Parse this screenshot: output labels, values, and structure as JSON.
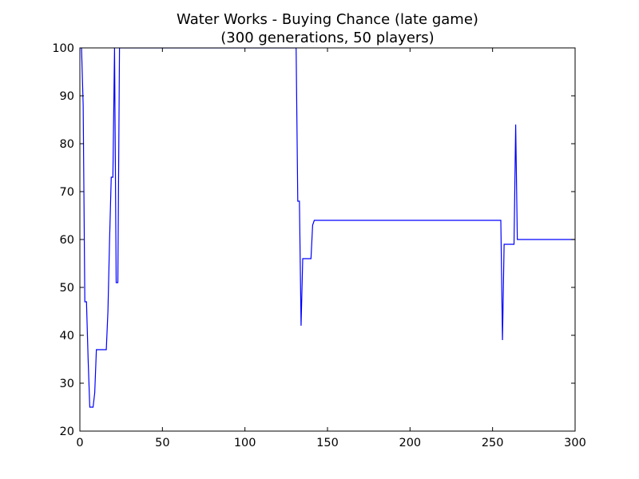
{
  "chart_data": {
    "type": "line",
    "title": "Water Works - Buying Chance (late game)",
    "subtitle": "(300 generations, 50 players)",
    "xlabel": "",
    "ylabel": "",
    "xlim": [
      0,
      300
    ],
    "ylim": [
      20,
      100
    ],
    "xticks": [
      0,
      50,
      100,
      150,
      200,
      250,
      300
    ],
    "yticks": [
      20,
      30,
      40,
      50,
      60,
      70,
      80,
      90,
      100
    ],
    "grid": false,
    "line_color": "#0000ff",
    "series": [
      {
        "x": [
          0,
          1,
          2,
          3,
          4,
          5,
          6,
          7,
          8,
          9,
          10,
          11,
          12,
          13,
          14,
          15,
          16,
          17,
          18,
          19,
          20,
          21,
          22,
          23,
          24,
          25,
          130,
          131,
          132,
          133,
          134,
          135,
          136,
          137,
          138,
          139,
          140,
          141,
          142,
          143,
          144,
          145,
          150,
          200,
          255,
          256,
          257,
          258,
          259,
          260,
          261,
          262,
          263,
          264,
          265,
          266,
          270,
          300
        ],
        "y": [
          100,
          100,
          88,
          47,
          47,
          35,
          25,
          25,
          25,
          28,
          37,
          37,
          37,
          37,
          37,
          37,
          37,
          45,
          60,
          73,
          73,
          100,
          51,
          51,
          100,
          100,
          100,
          100,
          68,
          68,
          42,
          56,
          56,
          56,
          56,
          56,
          56,
          63,
          64,
          64,
          64,
          64,
          64,
          64,
          64,
          39,
          59,
          59,
          59,
          59,
          59,
          59,
          59,
          84,
          60,
          60,
          60,
          60
        ]
      }
    ]
  }
}
